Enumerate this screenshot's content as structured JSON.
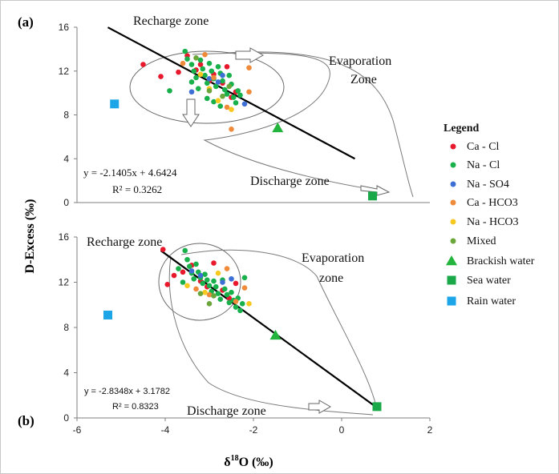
{
  "figure": {
    "y_axis_label": "D-Excess (‰)",
    "x_axis_label": "δ18O (‰)",
    "x_label_main": "δ",
    "x_label_sup": "18",
    "x_label_rest": "O (‰)"
  },
  "legend": {
    "title": "Legend",
    "entries": [
      {
        "label": "Ca - Cl",
        "color": "#e8192c",
        "marker": "circle"
      },
      {
        "label": "Na - Cl",
        "color": "#17b04a",
        "marker": "circle"
      },
      {
        "label": "Na - SO4",
        "color": "#3d6fd4",
        "marker": "circle"
      },
      {
        "label": "Ca - HCO3",
        "color": "#ef8a3a",
        "marker": "circle"
      },
      {
        "label": "Na - HCO3",
        "color": "#f7c81e",
        "marker": "circle"
      },
      {
        "label": "Mixed",
        "color": "#6aa63a",
        "marker": "circle"
      },
      {
        "label": "Brackish water",
        "color": "#22b43c",
        "marker": "triangle"
      },
      {
        "label": "Sea water",
        "color": "#1aa848",
        "marker": "square"
      },
      {
        "label": "Rain water",
        "color": "#1ca6e8",
        "marker": "square"
      }
    ]
  },
  "chart_data": [
    {
      "type": "scatter",
      "panel": "(a)",
      "xlim": [
        -6,
        2
      ],
      "ylim": [
        0,
        16
      ],
      "xticks": [
        -6,
        -4,
        -2,
        0,
        2
      ],
      "yticks": [
        0,
        4,
        8,
        12,
        16
      ],
      "annotations": {
        "recharge": "Recharge zone",
        "evaporation_line1": "Evaporation",
        "evaporation_line2": "Zone",
        "discharge": "Discharge zone"
      },
      "equation": "y = -2.1405x + 4.6424",
      "r2": "R² = 0.3262",
      "regression": {
        "slope": -2.1405,
        "intercept": 4.6424,
        "x_range": [
          -5.3,
          0.3
        ]
      },
      "series": [
        {
          "name": "Ca - Cl",
          "points": [
            [
              -4.5,
              12.6
            ],
            [
              -4.1,
              11.5
            ],
            [
              -3.7,
              11.9
            ],
            [
              -3.5,
              13.4
            ],
            [
              -3.2,
              12.6
            ],
            [
              -2.9,
              11.7
            ],
            [
              -2.7,
              10.9
            ],
            [
              -2.6,
              12.4
            ],
            [
              -2.4,
              10.1
            ],
            [
              -2.5,
              9.6
            ],
            [
              -3.0,
              11.1
            ],
            [
              -3.3,
              12.1
            ]
          ]
        },
        {
          "name": "Na - Cl",
          "points": [
            [
              -3.55,
              13.8
            ],
            [
              -3.5,
              13.1
            ],
            [
              -3.4,
              12.6
            ],
            [
              -3.35,
              12.0
            ],
            [
              -3.3,
              11.4
            ],
            [
              -3.2,
              13.0
            ],
            [
              -3.15,
              12.2
            ],
            [
              -3.1,
              11.6
            ],
            [
              -3.05,
              10.9
            ],
            [
              -3.0,
              12.7
            ],
            [
              -2.95,
              12.0
            ],
            [
              -2.9,
              11.3
            ],
            [
              -2.85,
              10.6
            ],
            [
              -2.8,
              12.4
            ],
            [
              -2.75,
              11.8
            ],
            [
              -2.7,
              11.1
            ],
            [
              -2.65,
              10.3
            ],
            [
              -2.6,
              9.9
            ],
            [
              -2.55,
              11.6
            ],
            [
              -2.5,
              10.8
            ],
            [
              -2.45,
              9.6
            ],
            [
              -2.4,
              9.1
            ],
            [
              -3.25,
              10.4
            ],
            [
              -3.4,
              11.0
            ],
            [
              -2.35,
              10.2
            ],
            [
              -2.3,
              9.8
            ],
            [
              -3.9,
              10.2
            ],
            [
              -3.05,
              9.5
            ],
            [
              -2.9,
              9.2
            ],
            [
              -2.75,
              8.8
            ]
          ]
        },
        {
          "name": "Na - SO4",
          "points": [
            [
              -3.4,
              10.1
            ],
            [
              -3.0,
              11.3
            ],
            [
              -2.8,
              11.0
            ],
            [
              -2.2,
              9.0
            ],
            [
              -2.7,
              11.6
            ]
          ]
        },
        {
          "name": "Ca - HCO3",
          "points": [
            [
              -2.5,
              6.7
            ],
            [
              -2.1,
              10.1
            ],
            [
              -2.1,
              12.3
            ],
            [
              -3.6,
              12.7
            ],
            [
              -2.6,
              8.7
            ],
            [
              -2.9,
              11.4
            ],
            [
              -3.1,
              13.5
            ]
          ]
        },
        {
          "name": "Na - HCO3",
          "points": [
            [
              -2.5,
              8.5
            ],
            [
              -2.8,
              9.3
            ],
            [
              -3.2,
              11.7
            ],
            [
              -3.0,
              10.4
            ]
          ]
        },
        {
          "name": "Mixed",
          "points": [
            [
              -3.0,
              10.2
            ],
            [
              -2.7,
              9.7
            ],
            [
              -3.3,
              13.2
            ],
            [
              -2.55,
              10.6
            ]
          ]
        },
        {
          "name": "Brackish water",
          "points": [
            [
              -1.45,
              6.8
            ]
          ]
        },
        {
          "name": "Sea water",
          "points": [
            [
              0.7,
              0.6
            ]
          ]
        },
        {
          "name": "Rain water",
          "points": [
            [
              -5.15,
              9.0
            ]
          ]
        }
      ]
    },
    {
      "type": "scatter",
      "panel": "(b)",
      "xlim": [
        -6,
        2
      ],
      "ylim": [
        0,
        16
      ],
      "xticks": [
        -6,
        -4,
        -2,
        0,
        2
      ],
      "yticks": [
        0,
        4,
        8,
        12,
        16
      ],
      "annotations": {
        "recharge": "Recharge zone",
        "evaporation_line1": "Evaporation",
        "evaporation_line2": "zone",
        "discharge": "Discharge zone"
      },
      "equation": "y = -2.8348x + 3.1782",
      "r2": "R² = 0.8323",
      "regression": {
        "slope": -2.8348,
        "intercept": 3.1782,
        "x_range": [
          -4.1,
          0.85
        ]
      },
      "series": [
        {
          "name": "Ca - Cl",
          "points": [
            [
              -4.05,
              14.9
            ],
            [
              -3.95,
              11.8
            ],
            [
              -3.8,
              12.6
            ],
            [
              -3.4,
              13.5
            ],
            [
              -3.2,
              12.1
            ],
            [
              -2.9,
              13.7
            ],
            [
              -2.7,
              11.3
            ],
            [
              -2.55,
              10.6
            ],
            [
              -2.4,
              11.9
            ],
            [
              -3.6,
              12.9
            ],
            [
              -3.05,
              11.6
            ]
          ]
        },
        {
          "name": "Na - Cl",
          "points": [
            [
              -3.55,
              14.8
            ],
            [
              -3.5,
              14.0
            ],
            [
              -3.45,
              13.4
            ],
            [
              -3.4,
              12.8
            ],
            [
              -3.35,
              12.3
            ],
            [
              -3.3,
              13.6
            ],
            [
              -3.25,
              12.9
            ],
            [
              -3.2,
              12.4
            ],
            [
              -3.15,
              11.9
            ],
            [
              -3.1,
              12.7
            ],
            [
              -3.05,
              12.2
            ],
            [
              -3.0,
              11.7
            ],
            [
              -2.95,
              11.2
            ],
            [
              -2.9,
              12.1
            ],
            [
              -2.85,
              11.6
            ],
            [
              -2.8,
              11.0
            ],
            [
              -2.75,
              10.5
            ],
            [
              -2.7,
              12.2
            ],
            [
              -2.65,
              11.4
            ],
            [
              -2.6,
              10.9
            ],
            [
              -2.55,
              10.2
            ],
            [
              -2.5,
              11.1
            ],
            [
              -2.45,
              10.4
            ],
            [
              -2.4,
              9.8
            ],
            [
              -2.35,
              10.6
            ],
            [
              -2.3,
              9.5
            ],
            [
              -3.7,
              13.2
            ],
            [
              -3.6,
              12.0
            ],
            [
              -2.2,
              12.4
            ],
            [
              -2.25,
              10.1
            ]
          ]
        },
        {
          "name": "Na - SO4",
          "points": [
            [
              -3.4,
              13.0
            ],
            [
              -3.2,
              12.6
            ],
            [
              -2.7,
              12.0
            ],
            [
              -2.5,
              12.3
            ]
          ]
        },
        {
          "name": "Ca - HCO3",
          "points": [
            [
              -2.6,
              13.2
            ],
            [
              -2.2,
              11.5
            ],
            [
              -3.0,
              10.9
            ],
            [
              -2.4,
              10.3
            ],
            [
              -3.3,
              11.4
            ]
          ]
        },
        {
          "name": "Na - HCO3",
          "points": [
            [
              -3.1,
              11.1
            ],
            [
              -2.8,
              12.8
            ],
            [
              -2.1,
              10.1
            ],
            [
              -3.5,
              11.7
            ]
          ]
        },
        {
          "name": "Mixed",
          "points": [
            [
              -3.0,
              10.1
            ],
            [
              -2.9,
              10.8
            ],
            [
              -3.2,
              11.0
            ]
          ]
        },
        {
          "name": "Brackish water",
          "points": [
            [
              -1.5,
              7.3
            ]
          ]
        },
        {
          "name": "Sea water",
          "points": [
            [
              0.8,
              1.0
            ]
          ]
        },
        {
          "name": "Rain water",
          "points": [
            [
              -5.3,
              9.1
            ]
          ]
        }
      ]
    }
  ]
}
